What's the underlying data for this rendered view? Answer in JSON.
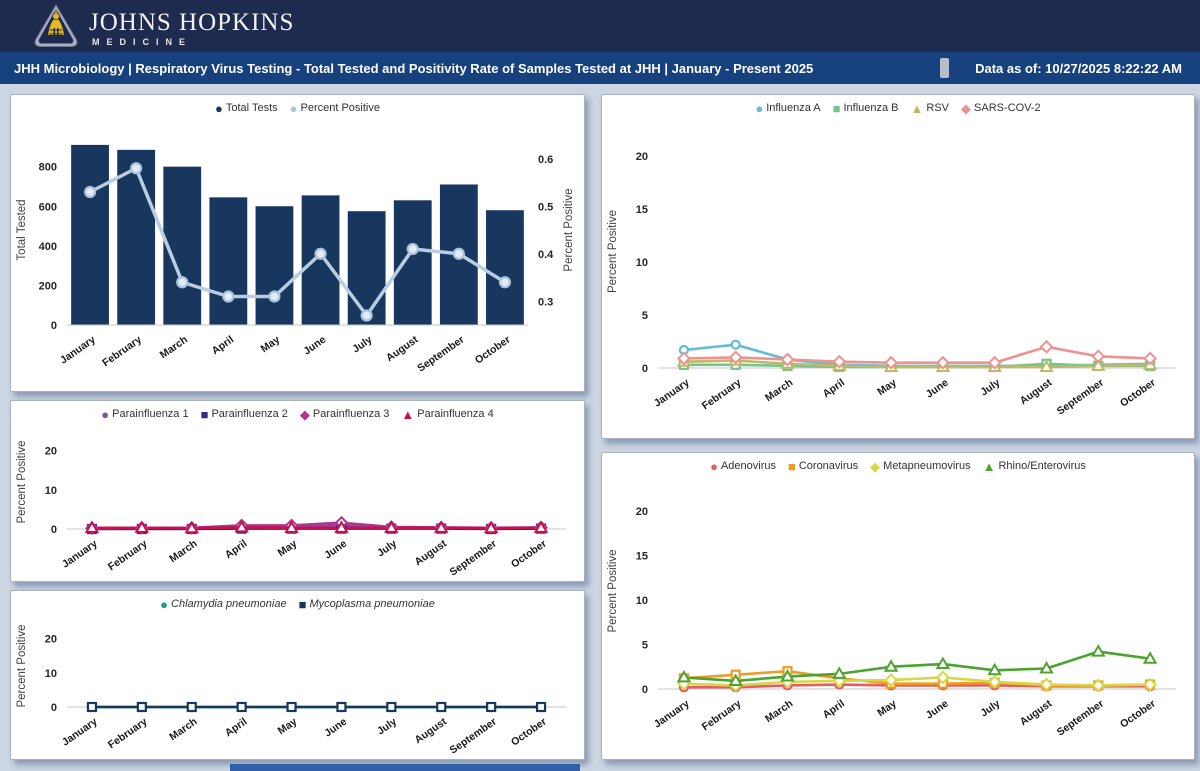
{
  "header": {
    "brand": {
      "line1": "JOHNS HOPKINS",
      "line2": "MEDICINE"
    },
    "title": "JHH Microbiology | Respiratory Virus Testing - Total Tested and Positivity Rate of Samples Tested at JHH | January - Present 2025",
    "data_as_of": "Data as of: 10/27/2025 8:22:22 AM"
  },
  "theme": {
    "logo_band_bg": "#1f2b4e",
    "title_bar_bg": "#16407e",
    "page_bg": "#ccd6e2",
    "bar_navy": "#17375e",
    "line_light_blue": "#b9cde3"
  },
  "chart_data": [
    {
      "id": "total-tests",
      "type": "combo",
      "categories": [
        "January",
        "February",
        "March",
        "April",
        "May",
        "June",
        "July",
        "August",
        "September",
        "October"
      ],
      "bar": {
        "name": "Total Tests",
        "color": "#17375e",
        "legend_color": "#17375e",
        "values": [
          910,
          885,
          800,
          645,
          600,
          655,
          575,
          630,
          710,
          580
        ]
      },
      "line": {
        "name": "Percent Positive",
        "color": "#b9cde3",
        "legend_color": "#a9c4de",
        "values": [
          0.53,
          0.58,
          0.34,
          0.31,
          0.31,
          0.4,
          0.27,
          0.41,
          0.4,
          0.34
        ]
      },
      "left_axis": {
        "label": "Total Tested",
        "ticks": [
          0,
          200,
          400,
          600,
          800
        ],
        "max": 960
      },
      "right_axis": {
        "label": "Percent Positive",
        "ticks": [
          0.3,
          0.4,
          0.5,
          0.6
        ],
        "min": 0.25,
        "max": 0.65
      }
    },
    {
      "id": "influenza-rsv-sars",
      "type": "line",
      "ylabel": "Percent Positive",
      "yticks": [
        0,
        5,
        10,
        15,
        20
      ],
      "ylim": [
        0,
        22
      ],
      "categories": [
        "January",
        "February",
        "March",
        "April",
        "May",
        "June",
        "July",
        "August",
        "September",
        "October"
      ],
      "series": [
        {
          "name": "Influenza A",
          "marker": "circle",
          "color": "#62bcd6",
          "values": [
            1.7,
            2.2,
            0.8,
            0.3,
            0.2,
            0.2,
            0.2,
            0.2,
            0.3,
            0.4
          ]
        },
        {
          "name": "Influenza B",
          "marker": "square",
          "color": "#74c48c",
          "values": [
            0.3,
            0.3,
            0.2,
            0.1,
            0.1,
            0.1,
            0.1,
            0.4,
            0.2,
            0.2
          ]
        },
        {
          "name": "RSV",
          "marker": "triangle",
          "color": "#c2b867",
          "values": [
            0.6,
            0.7,
            0.4,
            0.2,
            0.1,
            0.1,
            0.1,
            0.1,
            0.2,
            0.3
          ]
        },
        {
          "name": "SARS-COV-2",
          "marker": "diamond",
          "color": "#f0908f",
          "values": [
            0.9,
            1.0,
            0.8,
            0.6,
            0.5,
            0.5,
            0.5,
            2.0,
            1.1,
            0.9
          ]
        }
      ]
    },
    {
      "id": "parainfluenza",
      "type": "line",
      "ylabel": "Percent Positive",
      "yticks": [
        0,
        10,
        20
      ],
      "ylim": [
        0,
        24
      ],
      "categories": [
        "January",
        "February",
        "March",
        "April",
        "May",
        "June",
        "July",
        "August",
        "September",
        "October"
      ],
      "series": [
        {
          "name": "Parainfluenza 1",
          "marker": "circle",
          "color": "#7a52a0",
          "values": [
            0.1,
            0.1,
            0.2,
            0.5,
            0.6,
            0.9,
            0.3,
            0.2,
            0.1,
            0.2
          ]
        },
        {
          "name": "Parainfluenza 2",
          "marker": "square",
          "color": "#2e2d87",
          "values": [
            0.0,
            0.0,
            0.0,
            0.1,
            0.1,
            0.1,
            0.1,
            0.1,
            0.0,
            0.1
          ]
        },
        {
          "name": "Parainfluenza 3",
          "marker": "diamond",
          "color": "#b2338f",
          "values": [
            0.2,
            0.3,
            0.3,
            0.9,
            0.9,
            1.6,
            0.5,
            0.4,
            0.3,
            0.4
          ]
        },
        {
          "name": "Parainfluenza 4",
          "marker": "triangle",
          "color": "#c8104c",
          "values": [
            0.3,
            0.3,
            0.2,
            0.4,
            0.3,
            0.3,
            0.3,
            0.3,
            0.2,
            0.3
          ]
        }
      ]
    },
    {
      "id": "pneumoniae",
      "type": "line",
      "legend_style": "italic",
      "ylabel": "Percent Positive",
      "yticks": [
        0,
        10,
        20
      ],
      "ylim": [
        0,
        24
      ],
      "categories": [
        "January",
        "February",
        "March",
        "April",
        "May",
        "June",
        "July",
        "August",
        "September",
        "October"
      ],
      "series": [
        {
          "name": "Chlamydia pneumoniae",
          "marker": "circle",
          "color": "#14a08a",
          "values": [
            0,
            0,
            0,
            0,
            0,
            0,
            0,
            0,
            0,
            0
          ]
        },
        {
          "name": "Mycoplasma pneumoniae",
          "marker": "square",
          "color": "#17375e",
          "values": [
            0,
            0,
            0,
            0,
            0,
            0,
            0,
            0,
            0,
            0
          ]
        }
      ]
    },
    {
      "id": "other-viruses",
      "type": "line",
      "ylabel": "Percent Positive",
      "yticks": [
        0,
        5,
        10,
        15,
        20
      ],
      "ylim": [
        0,
        22
      ],
      "categories": [
        "January",
        "February",
        "March",
        "April",
        "May",
        "June",
        "July",
        "August",
        "September",
        "October"
      ],
      "series": [
        {
          "name": "Adenovirus",
          "marker": "circle",
          "color": "#e35d63",
          "values": [
            0.2,
            0.2,
            0.4,
            0.5,
            0.4,
            0.4,
            0.4,
            0.3,
            0.3,
            0.3
          ]
        },
        {
          "name": "Coronavirus",
          "marker": "square",
          "color": "#ef9a23",
          "values": [
            1.2,
            1.6,
            2.0,
            1.2,
            0.6,
            0.6,
            0.7,
            0.4,
            0.4,
            0.5
          ]
        },
        {
          "name": "Metapneumovirus",
          "marker": "diamond",
          "color": "#d6d743",
          "values": [
            0.6,
            0.4,
            0.8,
            0.9,
            1.0,
            1.3,
            0.8,
            0.5,
            0.4,
            0.5
          ]
        },
        {
          "name": "Rhino/Enterovirus",
          "marker": "triangle",
          "color": "#4ca32f",
          "values": [
            1.3,
            0.9,
            1.4,
            1.7,
            2.5,
            2.8,
            2.1,
            2.3,
            4.2,
            3.4
          ]
        }
      ]
    }
  ]
}
